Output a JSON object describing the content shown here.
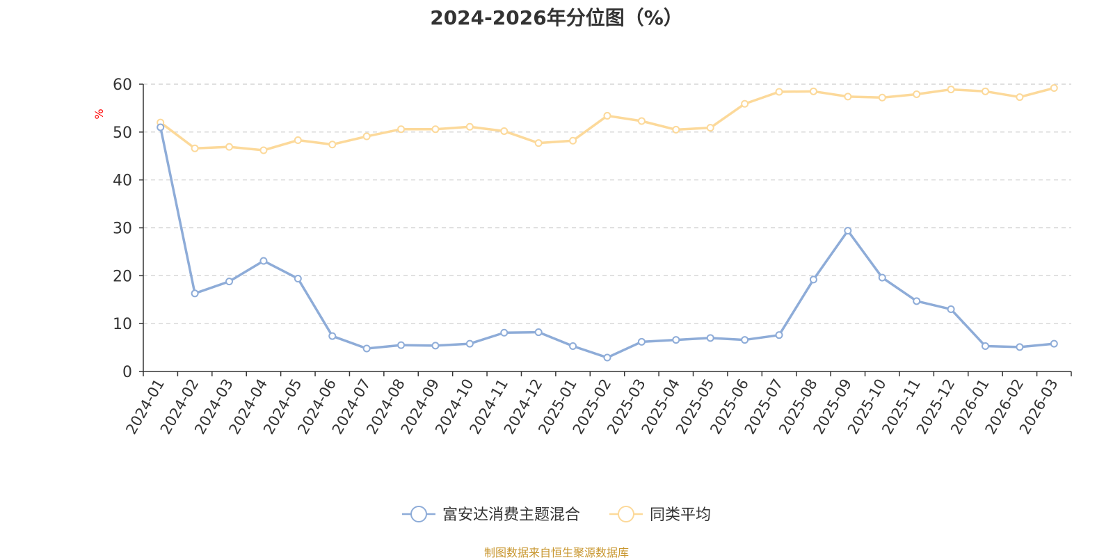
{
  "chart_data": {
    "type": "line",
    "title": "2024-2026年分位图（%）",
    "ylabel": "%",
    "xlabel": "",
    "ylim": [
      0,
      60
    ],
    "yticks": [
      0,
      10,
      20,
      30,
      40,
      50,
      60
    ],
    "grid": true,
    "legend_position": "bottom-center",
    "categories": [
      "2024-01",
      "2024-02",
      "2024-03",
      "2024-04",
      "2024-05",
      "2024-06",
      "2024-07",
      "2024-08",
      "2024-09",
      "2024-10",
      "2024-11",
      "2024-12",
      "2025-01",
      "2025-02",
      "2025-03",
      "2025-04",
      "2025-05",
      "2025-06",
      "2025-07",
      "2025-08",
      "2025-09",
      "2025-10",
      "2025-11",
      "2025-12",
      "2026-01",
      "2026-02",
      "2026-03"
    ],
    "series": [
      {
        "name": "富安达消费主题混合",
        "color": "#8eacd8",
        "values": [
          51.0,
          16.3,
          18.8,
          23.1,
          19.4,
          7.4,
          4.8,
          5.5,
          5.4,
          5.8,
          8.1,
          8.2,
          5.3,
          2.9,
          6.2,
          6.6,
          7.0,
          6.6,
          7.6,
          19.2,
          29.4,
          19.6,
          14.7,
          13.0,
          5.3,
          5.1,
          5.8
        ]
      },
      {
        "name": "同类平均",
        "color": "#fcd99a",
        "values": [
          52.0,
          46.6,
          46.9,
          46.2,
          48.3,
          47.4,
          49.1,
          50.6,
          50.6,
          51.1,
          50.2,
          47.7,
          48.2,
          53.4,
          52.3,
          50.5,
          50.9,
          55.9,
          58.4,
          58.5,
          57.4,
          57.2,
          57.9,
          58.9,
          58.5,
          57.3,
          59.2
        ]
      }
    ]
  },
  "colors": {
    "axis": "#333333",
    "grid": "#cccccc",
    "ylabel": "#ff0000",
    "footer": "#c8962e"
  },
  "footer": {
    "source": "制图数据来自恒生聚源数据库"
  }
}
